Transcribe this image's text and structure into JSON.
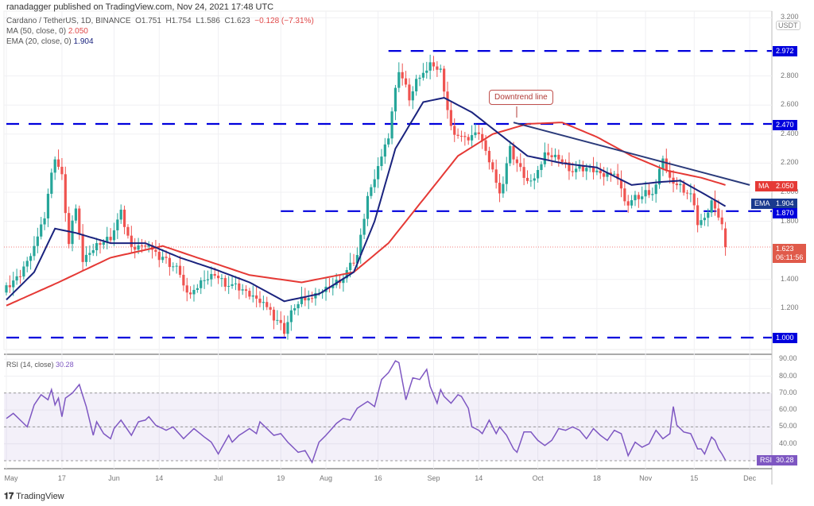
{
  "header": {
    "published": "ranadagger published on TradingView.com, Nov 24, 2021 17:48 UTC",
    "symbol": "Cardano / TetherUS, 1D, BINANCE",
    "open": "O1.751",
    "high": "H1.754",
    "low": "L1.586",
    "close": "C1.623",
    "change": "−0.128 (−7.31%)",
    "ma_label": "MA (50, close, 0)",
    "ma_value": "2.050",
    "ema_label": "EMA (20, close, 0)",
    "ema_value": "1.904"
  },
  "currency": "USDT",
  "annotation": "Downtrend line",
  "tags": {
    "r1": "2.972",
    "r2": "2.470",
    "ma_tag": "MA",
    "ma": "2.050",
    "ema_tag": "EMA",
    "ema": "1.904",
    "s1": "1.870",
    "last": "1.623",
    "countdown": "06:11:56",
    "s2": "1.000",
    "rsi_tag": "RSI",
    "rsi": "30.28"
  },
  "rsi_label": "RSI (14, close)",
  "rsi_value": "30.28",
  "logo": "TradingView",
  "colors": {
    "up": "#26a69a",
    "down": "#ef5350",
    "ma": "#e53935",
    "ema": "#1a237e",
    "level": "#0000dd",
    "rsi": "#7e57c2"
  },
  "chart_data": {
    "type": "candlestick",
    "title": "Cardano / TetherUS, 1D, BINANCE",
    "ylim": [
      0.98,
      3.2
    ],
    "price_ticks": [
      "3.200",
      "2.800",
      "2.600",
      "2.400",
      "2.200",
      "2.000",
      "1.800",
      "1.400",
      "1.200"
    ],
    "x_labels": [
      [
        "May",
        0
      ],
      [
        "17",
        16
      ],
      [
        "Jun",
        31
      ],
      [
        "14",
        44
      ],
      [
        "Jul",
        61
      ],
      [
        "19",
        79
      ],
      [
        "Aug",
        92
      ],
      [
        "16",
        107
      ],
      [
        "Sep",
        123
      ],
      [
        "14",
        136
      ],
      [
        "Oct",
        153
      ],
      [
        "18",
        170
      ],
      [
        "Nov",
        184
      ],
      [
        "15",
        198
      ],
      [
        "Dec",
        214
      ]
    ],
    "close_waypoints": [
      [
        0,
        1.33
      ],
      [
        4,
        1.42
      ],
      [
        8,
        1.6
      ],
      [
        11,
        1.85
      ],
      [
        14,
        2.25
      ],
      [
        16,
        2.1
      ],
      [
        18,
        1.65
      ],
      [
        20,
        1.9
      ],
      [
        22,
        1.55
      ],
      [
        26,
        1.65
      ],
      [
        30,
        1.7
      ],
      [
        33,
        1.85
      ],
      [
        36,
        1.6
      ],
      [
        40,
        1.62
      ],
      [
        45,
        1.55
      ],
      [
        50,
        1.45
      ],
      [
        52,
        1.28
      ],
      [
        56,
        1.4
      ],
      [
        60,
        1.45
      ],
      [
        63,
        1.38
      ],
      [
        67,
        1.33
      ],
      [
        72,
        1.25
      ],
      [
        76,
        1.18
      ],
      [
        80,
        1.05
      ],
      [
        83,
        1.22
      ],
      [
        88,
        1.3
      ],
      [
        92,
        1.35
      ],
      [
        97,
        1.42
      ],
      [
        101,
        1.55
      ],
      [
        104,
        1.95
      ],
      [
        107,
        2.15
      ],
      [
        110,
        2.4
      ],
      [
        113,
        2.85
      ],
      [
        116,
        2.65
      ],
      [
        119,
        2.8
      ],
      [
        122,
        2.9
      ],
      [
        125,
        2.85
      ],
      [
        128,
        2.45
      ],
      [
        132,
        2.35
      ],
      [
        136,
        2.4
      ],
      [
        139,
        2.2
      ],
      [
        142,
        1.98
      ],
      [
        145,
        2.3
      ],
      [
        148,
        2.15
      ],
      [
        151,
        2.05
      ],
      [
        155,
        2.28
      ],
      [
        159,
        2.25
      ],
      [
        163,
        2.15
      ],
      [
        168,
        2.15
      ],
      [
        172,
        2.1
      ],
      [
        176,
        2.12
      ],
      [
        178,
        1.92
      ],
      [
        182,
        1.97
      ],
      [
        186,
        2.0
      ],
      [
        189,
        2.25
      ],
      [
        191,
        2.1
      ],
      [
        194,
        2.05
      ],
      [
        197,
        1.98
      ],
      [
        199,
        1.78
      ],
      [
        201,
        1.8
      ],
      [
        203,
        1.92
      ],
      [
        205,
        1.82
      ],
      [
        206,
        1.75
      ],
      [
        207,
        1.623
      ]
    ],
    "ma50_waypoints": [
      [
        0,
        1.22
      ],
      [
        15,
        1.38
      ],
      [
        30,
        1.55
      ],
      [
        45,
        1.63
      ],
      [
        55,
        1.55
      ],
      [
        70,
        1.43
      ],
      [
        85,
        1.38
      ],
      [
        100,
        1.45
      ],
      [
        110,
        1.65
      ],
      [
        120,
        1.95
      ],
      [
        130,
        2.25
      ],
      [
        140,
        2.4
      ],
      [
        150,
        2.47
      ],
      [
        160,
        2.48
      ],
      [
        170,
        2.38
      ],
      [
        180,
        2.25
      ],
      [
        190,
        2.15
      ],
      [
        200,
        2.1
      ],
      [
        207,
        2.05
      ]
    ],
    "ema20_waypoints": [
      [
        0,
        1.26
      ],
      [
        8,
        1.45
      ],
      [
        14,
        1.75
      ],
      [
        20,
        1.72
      ],
      [
        30,
        1.65
      ],
      [
        40,
        1.65
      ],
      [
        50,
        1.55
      ],
      [
        60,
        1.47
      ],
      [
        70,
        1.38
      ],
      [
        80,
        1.25
      ],
      [
        90,
        1.3
      ],
      [
        100,
        1.45
      ],
      [
        106,
        1.8
      ],
      [
        112,
        2.3
      ],
      [
        120,
        2.62
      ],
      [
        126,
        2.65
      ],
      [
        134,
        2.55
      ],
      [
        142,
        2.4
      ],
      [
        150,
        2.25
      ],
      [
        160,
        2.2
      ],
      [
        170,
        2.17
      ],
      [
        180,
        2.05
      ],
      [
        188,
        2.07
      ],
      [
        194,
        2.08
      ],
      [
        200,
        2.0
      ],
      [
        207,
        1.904
      ]
    ],
    "levels": [
      {
        "value": 2.972,
        "from": 110
      },
      {
        "value": 2.47,
        "from": 0
      },
      {
        "value": 1.87,
        "from": 79
      },
      {
        "value": 1.0,
        "from": 0
      }
    ],
    "trendline": [
      [
        146,
        2.48
      ],
      [
        214,
        2.05
      ]
    ],
    "rsi": {
      "ylim": [
        28,
        92
      ],
      "ticks": [
        "90.00",
        "80.00",
        "70.00",
        "60.00",
        "50.00",
        "40.00"
      ],
      "bands": [
        70,
        50,
        30
      ],
      "waypoints": [
        [
          0,
          55
        ],
        [
          2,
          58
        ],
        [
          4,
          54
        ],
        [
          6,
          50
        ],
        [
          8,
          63
        ],
        [
          10,
          69
        ],
        [
          12,
          66
        ],
        [
          13,
          72
        ],
        [
          14,
          63
        ],
        [
          15,
          67
        ],
        [
          16,
          56
        ],
        [
          17,
          67
        ],
        [
          19,
          70
        ],
        [
          21,
          75
        ],
        [
          23,
          62
        ],
        [
          25,
          45
        ],
        [
          26,
          53
        ],
        [
          28,
          46
        ],
        [
          30,
          43
        ],
        [
          31,
          49
        ],
        [
          33,
          54
        ],
        [
          36,
          45
        ],
        [
          38,
          53
        ],
        [
          40,
          54
        ],
        [
          41,
          56
        ],
        [
          43,
          51
        ],
        [
          46,
          48
        ],
        [
          48,
          50
        ],
        [
          51,
          43
        ],
        [
          54,
          49
        ],
        [
          57,
          44
        ],
        [
          59,
          41
        ],
        [
          61,
          34
        ],
        [
          64,
          45
        ],
        [
          65,
          41
        ],
        [
          67,
          45
        ],
        [
          70,
          49
        ],
        [
          72,
          46
        ],
        [
          73,
          53
        ],
        [
          75,
          49
        ],
        [
          77,
          45
        ],
        [
          79,
          46
        ],
        [
          81,
          41
        ],
        [
          84,
          35
        ],
        [
          86,
          36
        ],
        [
          88,
          29
        ],
        [
          90,
          41
        ],
        [
          92,
          45
        ],
        [
          95,
          52
        ],
        [
          97,
          55
        ],
        [
          99,
          54
        ],
        [
          101,
          61
        ],
        [
          104,
          65
        ],
        [
          106,
          62
        ],
        [
          108,
          78
        ],
        [
          110,
          82
        ],
        [
          112,
          89
        ],
        [
          113,
          88
        ],
        [
          115,
          66
        ],
        [
          117,
          79
        ],
        [
          119,
          78
        ],
        [
          121,
          84
        ],
        [
          122,
          74
        ],
        [
          124,
          64
        ],
        [
          125,
          72
        ],
        [
          126,
          68
        ],
        [
          128,
          64
        ],
        [
          130,
          69
        ],
        [
          131,
          68
        ],
        [
          133,
          61
        ],
        [
          134,
          50
        ],
        [
          136,
          48
        ],
        [
          137,
          46
        ],
        [
          139,
          54
        ],
        [
          141,
          46
        ],
        [
          142,
          50
        ],
        [
          144,
          45
        ],
        [
          146,
          37
        ],
        [
          147,
          35
        ],
        [
          149,
          47
        ],
        [
          151,
          47
        ],
        [
          153,
          42
        ],
        [
          155,
          39
        ],
        [
          157,
          42
        ],
        [
          159,
          49
        ],
        [
          161,
          48
        ],
        [
          163,
          50
        ],
        [
          165,
          48
        ],
        [
          167,
          43
        ],
        [
          169,
          49
        ],
        [
          171,
          45
        ],
        [
          173,
          42
        ],
        [
          175,
          48
        ],
        [
          177,
          46
        ],
        [
          179,
          33
        ],
        [
          181,
          41
        ],
        [
          183,
          38
        ],
        [
          185,
          40
        ],
        [
          187,
          48
        ],
        [
          189,
          43
        ],
        [
          191,
          46
        ],
        [
          192,
          62
        ],
        [
          193,
          51
        ],
        [
          195,
          47
        ],
        [
          197,
          46
        ],
        [
          199,
          37
        ],
        [
          200,
          37
        ],
        [
          201,
          34
        ],
        [
          203,
          44
        ],
        [
          204,
          42
        ],
        [
          205,
          37
        ],
        [
          206,
          34
        ],
        [
          207,
          30.28
        ]
      ]
    }
  }
}
